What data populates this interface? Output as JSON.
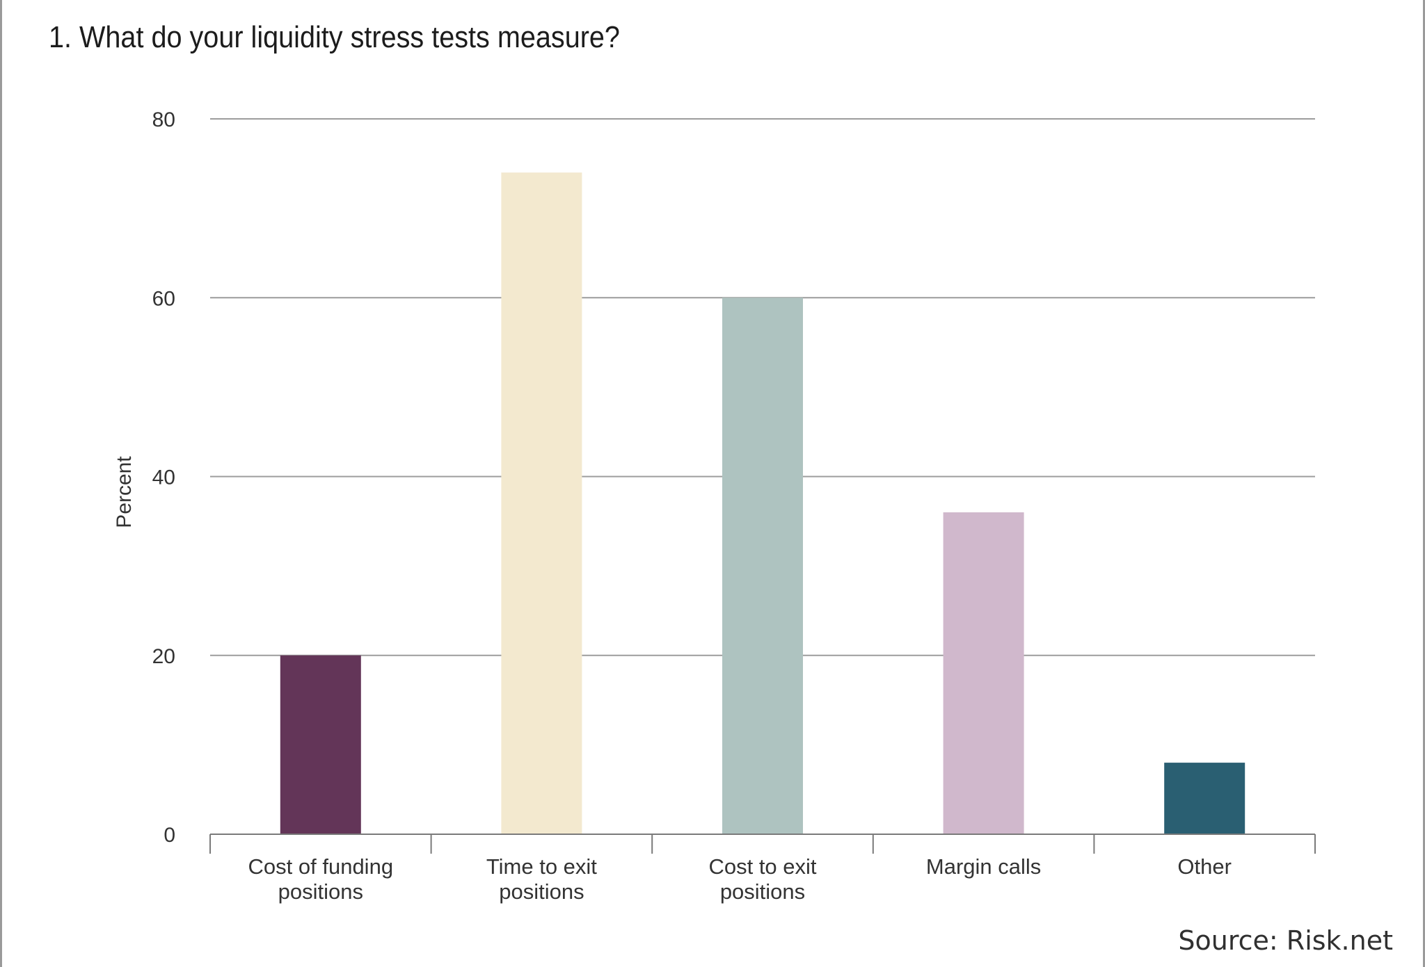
{
  "chart_data": {
    "type": "bar",
    "title": "1. What do your liquidity stress tests measure?",
    "ylabel": "Percent",
    "xlabel": "",
    "ylim": [
      0,
      80
    ],
    "yticks": [
      0,
      20,
      40,
      60,
      80
    ],
    "grid": true,
    "categories": [
      [
        "Cost of funding",
        "positions"
      ],
      [
        "Time to exit",
        "positions"
      ],
      [
        "Cost to exit",
        "positions"
      ],
      [
        "Margin calls"
      ],
      [
        "Other"
      ]
    ],
    "values": [
      20,
      74,
      60,
      36,
      8
    ],
    "colors": [
      "#633558",
      "#f3e9cf",
      "#aec3c0",
      "#d0b8cc",
      "#2a5f72"
    ],
    "source": "Source: Risk.net"
  }
}
